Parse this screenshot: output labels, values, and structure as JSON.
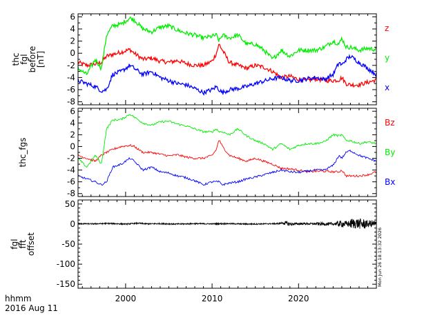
{
  "x_axis": {
    "ticks": [
      {
        "value": 2000,
        "label": "2000"
      },
      {
        "value": 2010,
        "label": "2010"
      },
      {
        "value": 2020,
        "label": "2020"
      }
    ],
    "range": [
      1994.5,
      2029
    ],
    "footer_line1": "hhmm",
    "footer_line2": "2016 Aug 11"
  },
  "timestamp": "Mon Jun 26 18:13:32 2026",
  "colors": {
    "z": "#ff0000",
    "y": "#00ee00",
    "x": "#0000ff",
    "black": "#000000"
  },
  "chart_data": [
    {
      "type": "line",
      "ylabel_lines": [
        "thc",
        "fgl",
        "before",
        "[nT]"
      ],
      "ylim": [
        -8.5,
        6.5
      ],
      "yticks": [
        6,
        4,
        2,
        0,
        -2,
        -4,
        -6,
        -8
      ],
      "ytick_labels": [
        "6",
        "4",
        "2",
        "0",
        "-2",
        "-4",
        "-6",
        "-8"
      ],
      "x": [
        1994.5,
        1995.5,
        1996.5,
        1997.2,
        1997.8,
        1998.5,
        1999.5,
        2000.5,
        2001.0,
        2002.0,
        2003.0,
        2004.0,
        2005.0,
        2006.0,
        2007.0,
        2008.0,
        2009.0,
        2010.0,
        2010.5,
        2010.8,
        2011.2,
        2012.0,
        2013.0,
        2014.0,
        2015.0,
        2016.0,
        2017.0,
        2018.0,
        2019.0,
        2020.0,
        2021.0,
        2022.0,
        2023.0,
        2024.0,
        2024.7,
        2025.0,
        2025.5,
        2026.0,
        2027.0,
        2028.0,
        2029.0
      ],
      "series": [
        {
          "name": "z",
          "color_key": "z",
          "values": [
            -1.5,
            -2.0,
            -1.8,
            -1.5,
            -0.5,
            -0.2,
            0.2,
            0.6,
            0.0,
            -1.0,
            -0.8,
            -1.3,
            -1.5,
            -1.2,
            -1.7,
            -2.0,
            -2.0,
            -1.3,
            0.0,
            1.5,
            0.5,
            -1.5,
            -2.0,
            -2.5,
            -2.0,
            -2.3,
            -3.0,
            -4.0,
            -3.8,
            -4.3,
            -4.5,
            -4.2,
            -4.5,
            -4.5,
            -4.4,
            -4.0,
            -5.0,
            -5.2,
            -5.2,
            -4.8,
            -4.4
          ]
        },
        {
          "name": "y",
          "color_key": "y",
          "values": [
            -2.5,
            -3.5,
            -1.0,
            -2.5,
            3.0,
            4.5,
            4.8,
            5.8,
            5.5,
            4.0,
            3.5,
            4.3,
            4.5,
            3.8,
            3.3,
            3.0,
            2.5,
            2.8,
            3.0,
            2.0,
            3.0,
            2.5,
            3.0,
            1.5,
            1.5,
            0.5,
            -1.0,
            0.5,
            -0.5,
            0.5,
            0.5,
            0.5,
            1.0,
            2.0,
            1.5,
            2.5,
            1.0,
            1.0,
            0.5,
            0.8,
            0.6
          ]
        },
        {
          "name": "x",
          "color_key": "x",
          "values": [
            -4.5,
            -5.0,
            -5.5,
            -6.2,
            -6.0,
            -3.5,
            -3.0,
            -2.0,
            -2.5,
            -3.5,
            -3.0,
            -4.0,
            -4.5,
            -5.0,
            -5.2,
            -5.8,
            -6.5,
            -6.0,
            -5.5,
            -6.0,
            -6.5,
            -6.0,
            -5.8,
            -5.5,
            -5.0,
            -4.6,
            -4.2,
            -4.0,
            -4.5,
            -4.5,
            -4.2,
            -4.0,
            -4.3,
            -3.5,
            -1.5,
            -2.0,
            -1.0,
            -0.5,
            -1.5,
            -2.5,
            -3.5
          ]
        }
      ],
      "legend": [
        {
          "label": "z",
          "color_key": "z"
        },
        {
          "label": "y",
          "color_key": "y"
        },
        {
          "label": "x",
          "color_key": "x"
        }
      ]
    },
    {
      "type": "line",
      "ylabel_lines": [
        "thc_fgs"
      ],
      "ylim": [
        -8.5,
        6.5
      ],
      "yticks": [
        6,
        4,
        2,
        0,
        -2,
        -4,
        -6,
        -8
      ],
      "ytick_labels": [
        "6",
        "4",
        "2",
        "0",
        "-2",
        "-4",
        "-6",
        "-8"
      ],
      "x": [
        1994.5,
        1995.5,
        1996.5,
        1997.2,
        1997.8,
        1998.5,
        1999.5,
        2000.5,
        2001.0,
        2002.0,
        2003.0,
        2004.0,
        2005.0,
        2006.0,
        2007.0,
        2008.0,
        2009.0,
        2010.0,
        2010.5,
        2010.8,
        2011.2,
        2012.0,
        2013.0,
        2014.0,
        2015.0,
        2016.0,
        2017.0,
        2018.0,
        2019.0,
        2020.0,
        2021.0,
        2022.0,
        2023.0,
        2024.0,
        2024.7,
        2025.0,
        2025.5,
        2026.0,
        2027.0,
        2028.0,
        2029.0
      ],
      "series": [
        {
          "name": "Bz",
          "color_key": "z",
          "values": [
            -1.5,
            -2.0,
            -2.5,
            -1.5,
            -1.0,
            -0.5,
            0.0,
            0.2,
            0.0,
            -1.0,
            -1.0,
            -1.3,
            -1.6,
            -1.4,
            -1.8,
            -2.0,
            -2.0,
            -1.5,
            -0.5,
            1.2,
            0.0,
            -1.5,
            -2.0,
            -2.5,
            -2.0,
            -2.5,
            -3.0,
            -3.7,
            -3.8,
            -4.0,
            -4.3,
            -4.2,
            -4.2,
            -4.3,
            -4.3,
            -4.0,
            -5.0,
            -5.0,
            -5.0,
            -4.8,
            -4.3
          ]
        },
        {
          "name": "By",
          "color_key": "y",
          "values": [
            -2.0,
            -3.5,
            -1.5,
            -3.0,
            3.0,
            4.5,
            4.6,
            5.5,
            5.0,
            4.0,
            3.6,
            4.2,
            4.3,
            3.8,
            3.5,
            3.0,
            2.5,
            2.5,
            3.0,
            2.5,
            2.5,
            2.0,
            3.0,
            1.8,
            1.0,
            0.5,
            -0.5,
            0.5,
            -0.5,
            0.2,
            0.5,
            0.5,
            0.8,
            2.0,
            1.8,
            2.0,
            1.0,
            1.0,
            0.5,
            0.8,
            0.5
          ]
        },
        {
          "name": "Bx",
          "color_key": "x",
          "values": [
            -5.0,
            -5.5,
            -6.0,
            -6.5,
            -6.0,
            -3.5,
            -3.0,
            -2.0,
            -2.5,
            -4.0,
            -3.5,
            -4.3,
            -4.5,
            -5.0,
            -5.3,
            -5.8,
            -6.5,
            -6.0,
            -6.0,
            -6.0,
            -6.5,
            -6.2,
            -6.0,
            -5.5,
            -5.2,
            -4.8,
            -4.4,
            -4.0,
            -4.3,
            -4.4,
            -4.2,
            -4.0,
            -4.0,
            -3.2,
            -1.5,
            -2.0,
            -1.0,
            -0.7,
            -1.5,
            -2.0,
            -2.5
          ]
        }
      ],
      "legend": [
        {
          "label": "Bz",
          "color_key": "z"
        },
        {
          "label": "By",
          "color_key": "y"
        },
        {
          "label": "Bx",
          "color_key": "x"
        }
      ]
    },
    {
      "type": "line",
      "ylabel_lines": [
        "fgl",
        "fft",
        "offset"
      ],
      "ylim": [
        -160,
        60
      ],
      "yticks": [
        50,
        0,
        -50,
        -100,
        -150
      ],
      "ytick_labels": [
        "50",
        "0",
        "-50",
        "-100",
        "-150"
      ],
      "x": [
        1994.5,
        1996.0,
        1998.0,
        2000.0,
        2001.5,
        2002.5,
        2004.0,
        2006.0,
        2008.0,
        2010.0,
        2012.0,
        2014.0,
        2016.0,
        2017.5,
        2018.3,
        2019.0,
        2020.5,
        2022.0,
        2023.5,
        2024.5,
        2025.5,
        2026.5,
        2027.5,
        2028.5,
        2029.0
      ],
      "series": [
        {
          "name": "offset",
          "color_key": "black",
          "values": [
            1.0,
            0.5,
            1.5,
            0.0,
            2.0,
            0.5,
            1.0,
            0.0,
            1.0,
            0.5,
            1.0,
            0.0,
            0.5,
            1.0,
            3.0,
            0.0,
            1.0,
            0.5,
            0.0,
            1.0,
            0.0,
            2.0,
            0.0,
            1.0,
            0.5
          ]
        }
      ],
      "bands": [
        {
          "x0": 1994.5,
          "x1": 2017.0,
          "amp": 1.5
        },
        {
          "x0": 2017.0,
          "x1": 2018.2,
          "amp": 2.0
        },
        {
          "x0": 2018.2,
          "x1": 2019.2,
          "amp": 5.0
        },
        {
          "x0": 2019.2,
          "x1": 2022.0,
          "amp": 2.5
        },
        {
          "x0": 2022.0,
          "x1": 2024.5,
          "amp": 4.0
        },
        {
          "x0": 2024.5,
          "x1": 2026.0,
          "amp": 8.0
        },
        {
          "x0": 2026.0,
          "x1": 2027.8,
          "amp": 13.0
        },
        {
          "x0": 2027.8,
          "x1": 2029.0,
          "amp": 9.0
        }
      ],
      "legend": []
    }
  ]
}
